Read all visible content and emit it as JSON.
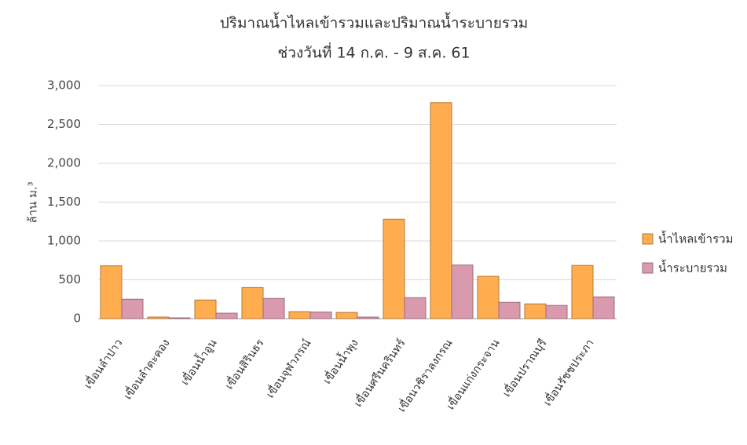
{
  "chart_data": {
    "type": "bar",
    "title": "ปริมาณน้ำไหลเข้ารวมและปริมาณน้ำระบายรวม",
    "subtitle": "ช่วงวันที่ 14 ก.ค. - 9 ส.ค. 61",
    "y_label": "ล้าน ม.³",
    "categories": [
      "เขื่อนลำปาว",
      "เขื่อนลำตะคอง",
      "เขื่อนน้ำอูน",
      "เขื่อนสิรินธร",
      "เขื่อนจุฬาภรณ์",
      "เขื่อนน้ำพุง",
      "เขื่อนศรีนครินทร์",
      "เขื่อนวชิราลงกรณ",
      "เขื่อนแก่งกระจาน",
      "เขื่อนปราณบุรี",
      "เขื่อนรัชชประภา"
    ],
    "series": [
      {
        "name": "น้ำไหลเข้ารวม",
        "color": "#ffad4f",
        "values": [
          680,
          20,
          240,
          400,
          90,
          80,
          1280,
          2780,
          545,
          190,
          685
        ]
      },
      {
        "name": "น้ำระบายรวม",
        "color": "#d99aae",
        "values": [
          250,
          10,
          70,
          260,
          85,
          20,
          270,
          690,
          210,
          170,
          280
        ]
      }
    ],
    "ylim": [
      0,
      3000
    ],
    "yticks": [
      0,
      500,
      {
        "value": 1000,
        "label": "1,000"
      },
      {
        "value": 1500,
        "label": "1,500"
      },
      {
        "value": 2000,
        "label": "2,000"
      },
      {
        "value": 2500,
        "label": "2,500"
      },
      {
        "value": 3000,
        "label": "3,000"
      }
    ],
    "grid": true,
    "legend": "right"
  }
}
